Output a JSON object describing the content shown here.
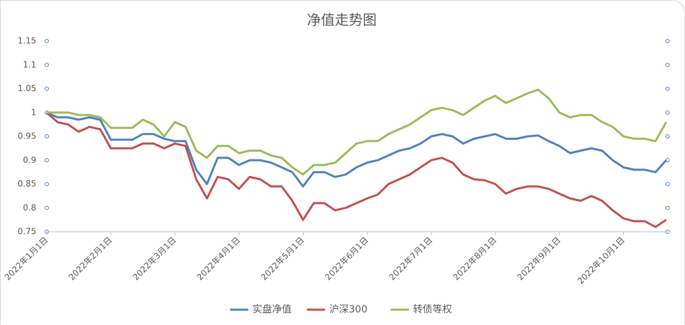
{
  "chart_data": {
    "type": "line",
    "title": "净值走势图",
    "categories": [
      "2022年1月1日",
      null,
      null,
      null,
      null,
      null,
      "2022年2月1日",
      null,
      null,
      null,
      null,
      null,
      "2022年3月1日",
      null,
      null,
      null,
      null,
      null,
      "2022年4月1日",
      null,
      null,
      null,
      null,
      null,
      "2022年5月1日",
      null,
      null,
      null,
      null,
      null,
      "2022年6月1日",
      null,
      null,
      null,
      null,
      null,
      "2022年7月1日",
      null,
      null,
      null,
      null,
      null,
      "2022年8月1日",
      null,
      null,
      null,
      null,
      null,
      "2022年9月1日",
      null,
      null,
      null,
      null,
      null,
      "2022年10月1日",
      null,
      null,
      null,
      null
    ],
    "series": [
      {
        "name": "实盘净值",
        "color": "#4f81bd",
        "values": [
          1.0,
          0.99,
          0.99,
          0.985,
          0.99,
          0.985,
          0.943,
          0.943,
          0.943,
          0.955,
          0.955,
          0.945,
          0.94,
          0.94,
          0.88,
          0.85,
          0.905,
          0.905,
          0.89,
          0.9,
          0.9,
          0.895,
          0.885,
          0.875,
          0.845,
          0.875,
          0.875,
          0.865,
          0.87,
          0.885,
          0.895,
          0.9,
          0.91,
          0.92,
          0.925,
          0.935,
          0.95,
          0.955,
          0.95,
          0.935,
          0.945,
          0.95,
          0.955,
          0.945,
          0.945,
          0.95,
          0.952,
          0.94,
          0.93,
          0.915,
          0.92,
          0.925,
          0.92,
          0.9,
          0.885,
          0.88,
          0.88,
          0.875,
          0.9
        ]
      },
      {
        "name": "沪深300",
        "color": "#c0504d",
        "values": [
          1.0,
          0.98,
          0.975,
          0.96,
          0.97,
          0.965,
          0.925,
          0.925,
          0.925,
          0.935,
          0.935,
          0.925,
          0.935,
          0.93,
          0.86,
          0.82,
          0.865,
          0.86,
          0.84,
          0.865,
          0.86,
          0.845,
          0.845,
          0.815,
          0.775,
          0.81,
          0.81,
          0.795,
          0.8,
          0.81,
          0.82,
          0.828,
          0.85,
          0.86,
          0.87,
          0.885,
          0.9,
          0.905,
          0.895,
          0.87,
          0.86,
          0.858,
          0.85,
          0.83,
          0.84,
          0.845,
          0.845,
          0.84,
          0.83,
          0.82,
          0.815,
          0.825,
          0.815,
          0.795,
          0.778,
          0.772,
          0.772,
          0.76,
          0.775
        ]
      },
      {
        "name": "转债等权",
        "color": "#9bbb59",
        "values": [
          1.0,
          1.0,
          1.0,
          0.995,
          0.995,
          0.99,
          0.968,
          0.968,
          0.968,
          0.985,
          0.975,
          0.95,
          0.98,
          0.97,
          0.92,
          0.905,
          0.93,
          0.93,
          0.915,
          0.92,
          0.92,
          0.91,
          0.905,
          0.885,
          0.87,
          0.89,
          0.89,
          0.895,
          0.915,
          0.935,
          0.94,
          0.94,
          0.955,
          0.965,
          0.975,
          0.99,
          1.005,
          1.01,
          1.005,
          0.995,
          1.01,
          1.025,
          1.035,
          1.02,
          1.03,
          1.04,
          1.048,
          1.03,
          1.0,
          0.99,
          0.995,
          0.995,
          0.98,
          0.97,
          0.95,
          0.945,
          0.945,
          0.94,
          0.98
        ]
      }
    ],
    "ylim": [
      0.75,
      1.15
    ],
    "yticks": [
      0.75,
      0.8,
      0.85,
      0.9,
      0.95,
      1,
      1.05,
      1.1,
      1.15
    ],
    "legend": "bottom"
  }
}
